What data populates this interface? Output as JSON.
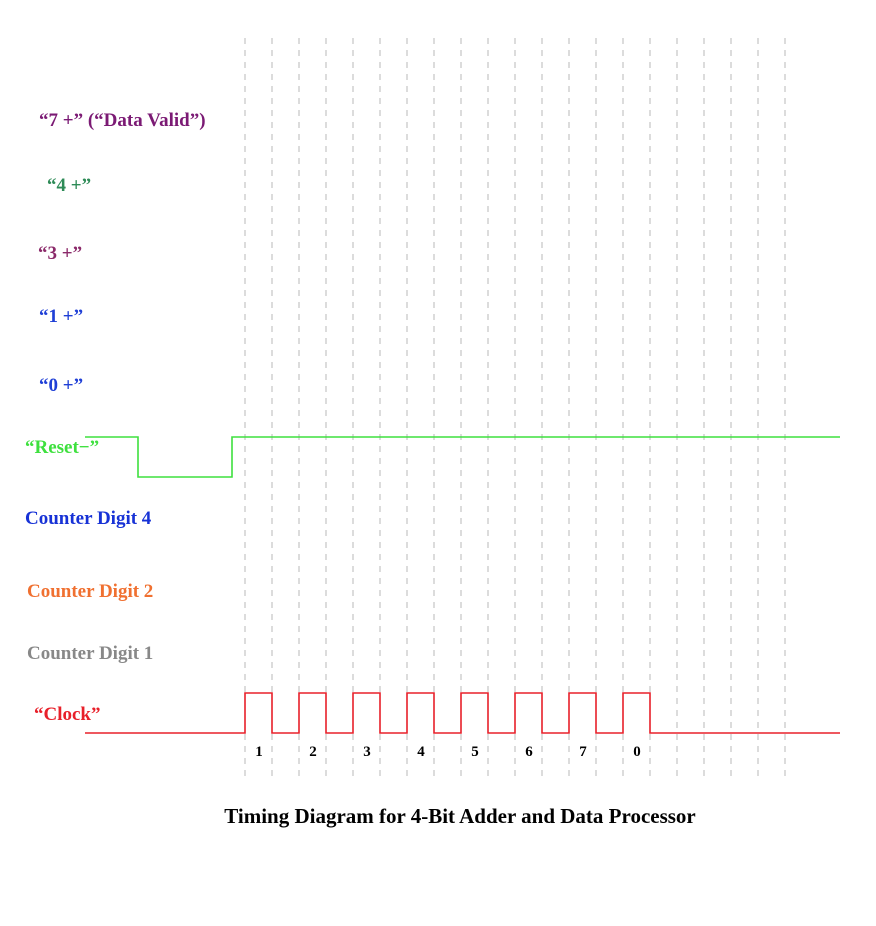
{
  "title": "Timing Diagram for 4-Bit Adder and Data Processor",
  "signals": [
    {
      "name": "“7 +” (“Data Valid”)",
      "color": "#7b1a74"
    },
    {
      "name": "“4 +”",
      "color": "#2e8b57"
    },
    {
      "name": "“3 +”",
      "color": "#8b2a6a"
    },
    {
      "name": "“1 +”",
      "color": "#1f3fd6"
    },
    {
      "name": "“0 +”",
      "color": "#1f3fd6"
    },
    {
      "name": "“Reset−”",
      "color": "#3ee03e",
      "levels": [
        1,
        0,
        1
      ],
      "transitions": [
        "start",
        "fall",
        "rise"
      ]
    },
    {
      "name": "Counter Digit 4",
      "color": "#1732d6"
    },
    {
      "name": "Counter Digit 2",
      "color": "#f07030"
    },
    {
      "name": "Counter Digit 1",
      "color": "#888888"
    },
    {
      "name": "“Clock”",
      "color": "#e8202a",
      "pulses": 8
    }
  ],
  "clock_labels": [
    "1",
    "2",
    "3",
    "4",
    "5",
    "6",
    "7",
    "0"
  ],
  "colors": {
    "gridline": "#b8b8b8",
    "text": "#000000"
  }
}
